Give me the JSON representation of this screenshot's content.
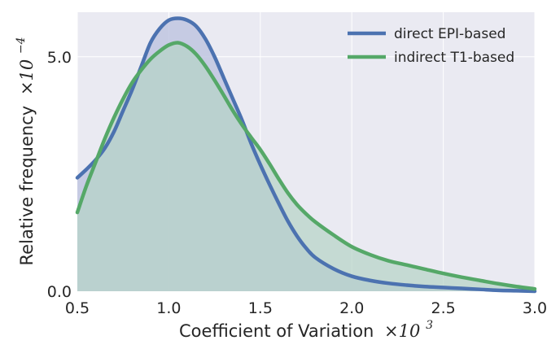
{
  "chart_data": {
    "type": "area",
    "xlabel": "Coefficient of Variation",
    "xlabel_multiplier": "×10",
    "xlabel_exponent": "3",
    "ylabel": "Relative frequency",
    "ylabel_multiplier": "×10",
    "ylabel_exponent": "−4",
    "xlim": [
      0.5,
      3.0
    ],
    "ylim": [
      0.0,
      5.95
    ],
    "xticks": [
      "0.5",
      "1.0",
      "1.5",
      "2.0",
      "2.5",
      "3.0"
    ],
    "xtick_values": [
      0.5,
      1.0,
      1.5,
      2.0,
      2.5,
      3.0
    ],
    "yticks": [
      "0.0",
      "5.0"
    ],
    "ytick_values": [
      0.0,
      5.0
    ],
    "grid": true,
    "background": "#EAEAF2",
    "legend_position": "top-right",
    "series": [
      {
        "name": "direct EPI-based",
        "color": "#4C72B0",
        "fill": "#C0C6E0",
        "x": [
          0.5,
          0.55,
          0.6,
          0.65,
          0.7,
          0.75,
          0.8,
          0.85,
          0.9,
          0.95,
          1.0,
          1.05,
          1.1,
          1.15,
          1.2,
          1.25,
          1.3,
          1.35,
          1.4,
          1.45,
          1.5,
          1.55,
          1.6,
          1.65,
          1.7,
          1.75,
          1.8,
          1.9,
          2.0,
          2.1,
          2.2,
          2.3,
          2.4,
          2.5,
          2.6,
          2.7,
          2.8,
          2.9,
          3.0
        ],
        "y": [
          2.42,
          2.6,
          2.8,
          3.05,
          3.4,
          3.85,
          4.3,
          4.8,
          5.3,
          5.6,
          5.78,
          5.82,
          5.78,
          5.65,
          5.38,
          5.0,
          4.55,
          4.1,
          3.65,
          3.15,
          2.7,
          2.28,
          1.88,
          1.5,
          1.18,
          0.92,
          0.72,
          0.48,
          0.32,
          0.23,
          0.17,
          0.13,
          0.1,
          0.08,
          0.06,
          0.04,
          0.02,
          0.01,
          0.0
        ]
      },
      {
        "name": "indirect T1-based",
        "color": "#55A868",
        "fill": "#B5D3C6",
        "x": [
          0.5,
          0.55,
          0.6,
          0.65,
          0.7,
          0.75,
          0.8,
          0.85,
          0.9,
          0.95,
          1.0,
          1.05,
          1.1,
          1.15,
          1.2,
          1.25,
          1.3,
          1.35,
          1.4,
          1.45,
          1.5,
          1.55,
          1.6,
          1.65,
          1.7,
          1.75,
          1.8,
          1.9,
          2.0,
          2.1,
          2.2,
          2.3,
          2.4,
          2.5,
          2.6,
          2.7,
          2.8,
          2.9,
          3.0
        ],
        "y": [
          1.68,
          2.25,
          2.75,
          3.25,
          3.7,
          4.1,
          4.45,
          4.72,
          4.95,
          5.12,
          5.25,
          5.3,
          5.22,
          5.05,
          4.8,
          4.5,
          4.18,
          3.85,
          3.55,
          3.28,
          3.02,
          2.72,
          2.4,
          2.1,
          1.85,
          1.65,
          1.48,
          1.2,
          0.95,
          0.78,
          0.65,
          0.56,
          0.47,
          0.38,
          0.3,
          0.23,
          0.16,
          0.1,
          0.05
        ]
      }
    ]
  }
}
